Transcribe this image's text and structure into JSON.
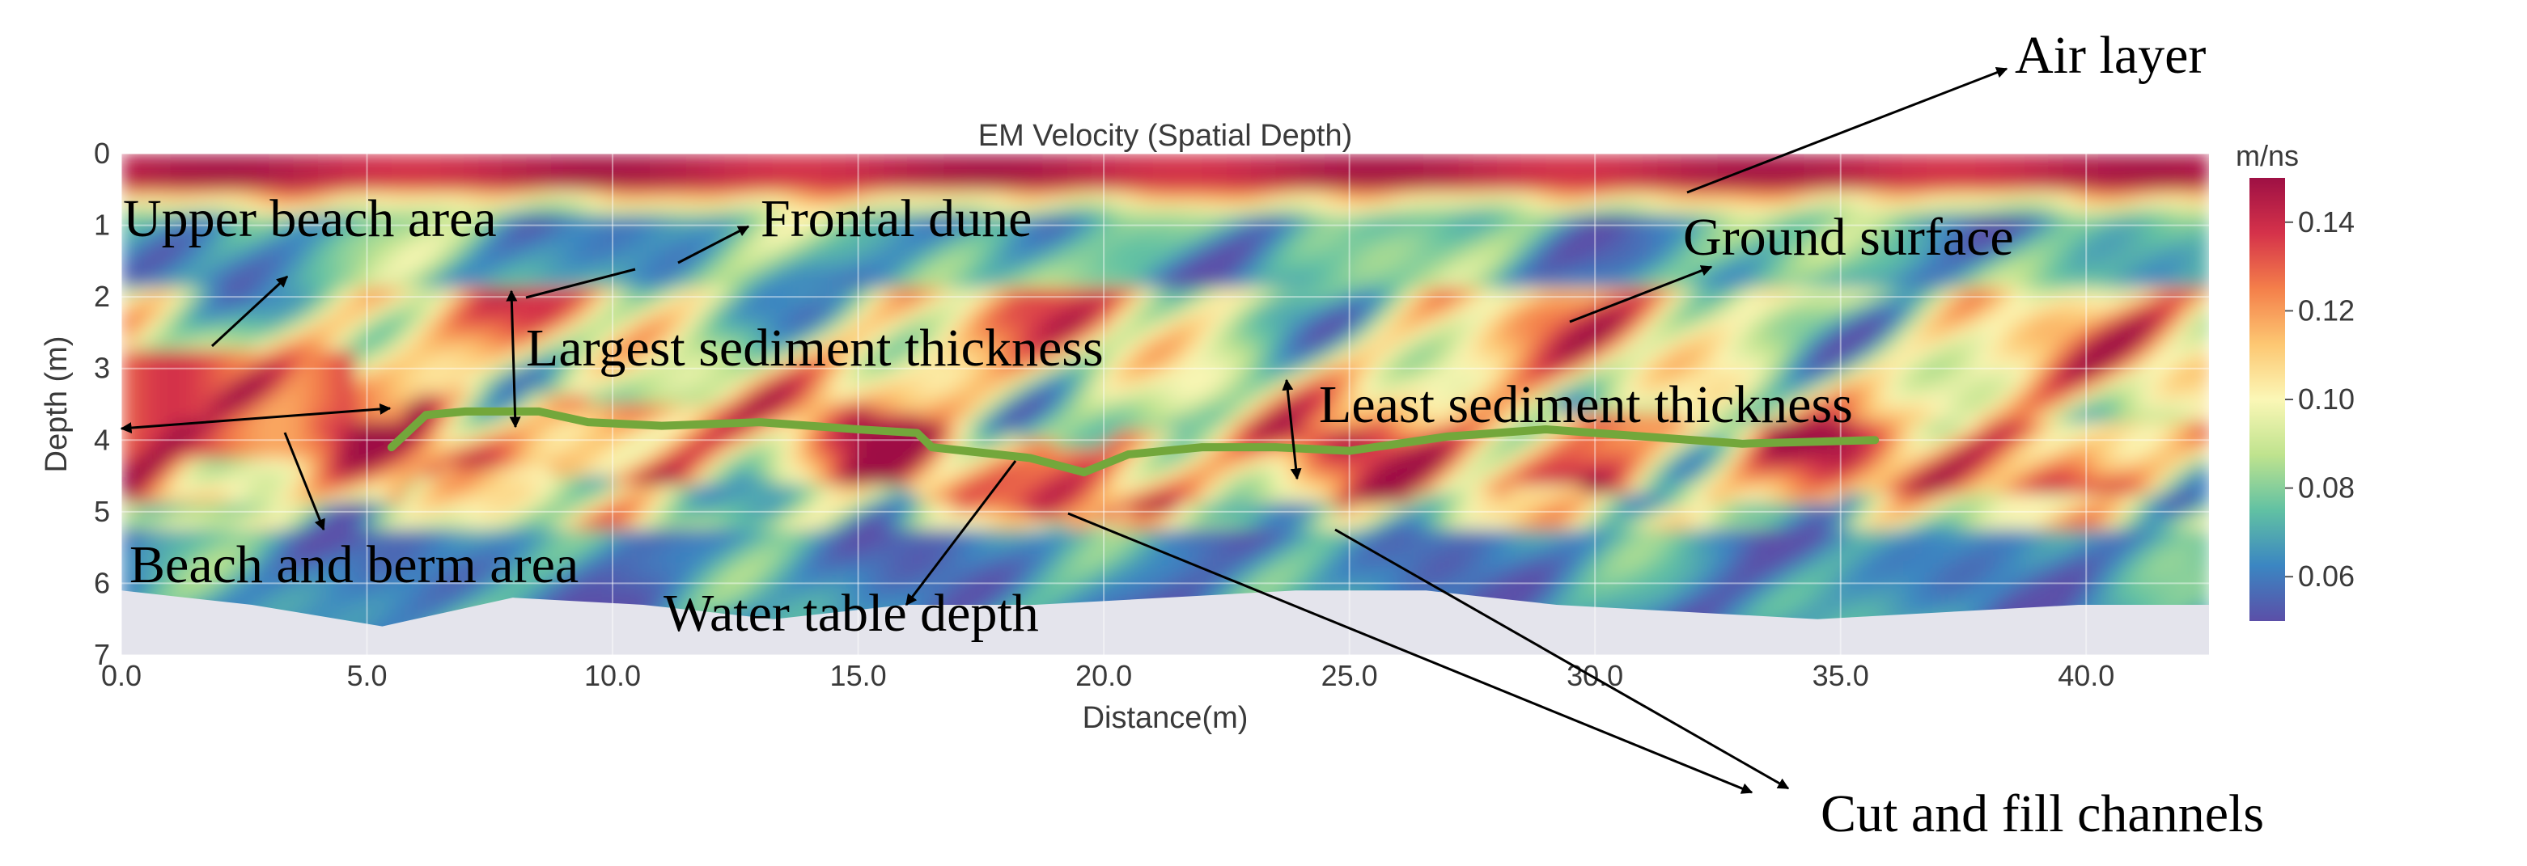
{
  "chart_data": {
    "type": "heatmap",
    "title": "EM Velocity (Spatial Depth)",
    "xlabel": "Distance(m)",
    "ylabel": "Depth (m)",
    "xlim": [
      0,
      42.5
    ],
    "ylim": [
      0,
      7
    ],
    "xticks": [
      "0.0",
      "5.0",
      "10.0",
      "15.0",
      "20.0",
      "25.0",
      "30.0",
      "35.0",
      "40.0"
    ],
    "yticks": [
      "0",
      "1",
      "2",
      "3",
      "4",
      "5",
      "6",
      "7"
    ],
    "colorbar": {
      "unit": "m/ns",
      "range": [
        0.05,
        0.15
      ],
      "ticks": [
        "0.06",
        "0.08",
        "0.10",
        "0.12",
        "0.14"
      ],
      "colormap": [
        "#5b4fa8",
        "#3b86c2",
        "#61c1a3",
        "#bfe38e",
        "#fbf7b6",
        "#fdc772",
        "#f47f4a",
        "#d5324a",
        "#9e1044"
      ]
    },
    "water_table": {
      "color": "#73a73b",
      "x": [
        5.5,
        6.2,
        7.0,
        8.5,
        9.5,
        11.0,
        13.0,
        15.0,
        16.2,
        16.5,
        18.5,
        19.6,
        20.5,
        22.0,
        23.5,
        25.0,
        27.0,
        29.0,
        31.0,
        33.0,
        35.7
      ],
      "depth": [
        4.1,
        3.65,
        3.6,
        3.6,
        3.75,
        3.8,
        3.75,
        3.85,
        3.9,
        4.1,
        4.25,
        4.45,
        4.2,
        4.1,
        4.1,
        4.15,
        3.95,
        3.85,
        3.95,
        4.05,
        4.0
      ]
    },
    "data_bottom_depth": [
      6.1,
      6.3,
      6.6,
      6.2,
      6.3,
      6.5,
      6.3,
      6.3,
      6.2,
      6.1,
      6.1,
      6.3,
      6.4,
      6.5,
      6.4,
      6.3,
      6.3
    ],
    "annotations": [
      "Air layer",
      "Upper beach area",
      "Frontal dune",
      "Ground surface",
      "Largest sediment thickness",
      "Least sediment thickness",
      "Beach and berm area",
      "Water table depth",
      "Cut and fill channels"
    ]
  }
}
